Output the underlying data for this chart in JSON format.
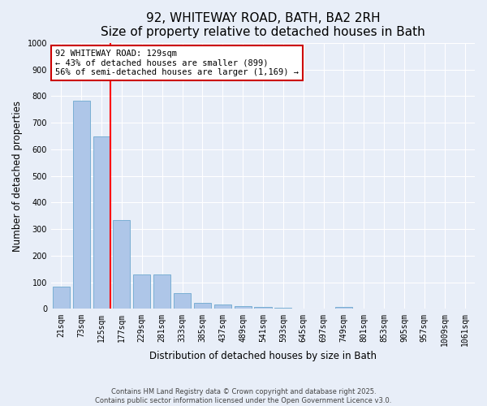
{
  "title1": "92, WHITEWAY ROAD, BATH, BA2 2RH",
  "title2": "Size of property relative to detached houses in Bath",
  "xlabel": "Distribution of detached houses by size in Bath",
  "ylabel": "Number of detached properties",
  "bar_labels": [
    "21sqm",
    "73sqm",
    "125sqm",
    "177sqm",
    "229sqm",
    "281sqm",
    "333sqm",
    "385sqm",
    "437sqm",
    "489sqm",
    "541sqm",
    "593sqm",
    "645sqm",
    "697sqm",
    "749sqm",
    "801sqm",
    "853sqm",
    "905sqm",
    "957sqm",
    "1009sqm",
    "1061sqm"
  ],
  "bar_values": [
    83,
    783,
    648,
    335,
    130,
    130,
    60,
    22,
    17,
    10,
    7,
    5,
    0,
    0,
    8,
    0,
    0,
    0,
    0,
    0,
    0
  ],
  "bar_color": "#aec6e8",
  "bar_edge_color": "#7aafd4",
  "redline_index": 2,
  "annotation_text": "92 WHITEWAY ROAD: 129sqm\n← 43% of detached houses are smaller (899)\n56% of semi-detached houses are larger (1,169) →",
  "annotation_box_color": "#ffffff",
  "annotation_box_edge": "#cc0000",
  "ylim": [
    0,
    1000
  ],
  "yticks": [
    0,
    100,
    200,
    300,
    400,
    500,
    600,
    700,
    800,
    900,
    1000
  ],
  "bg_color": "#e8eef8",
  "plot_bg_color": "#e8eef8",
  "footer1": "Contains HM Land Registry data © Crown copyright and database right 2025.",
  "footer2": "Contains public sector information licensed under the Open Government Licence v3.0.",
  "grid_color": "#ffffff",
  "title_fontsize": 11,
  "axis_label_fontsize": 8.5,
  "tick_fontsize": 7
}
